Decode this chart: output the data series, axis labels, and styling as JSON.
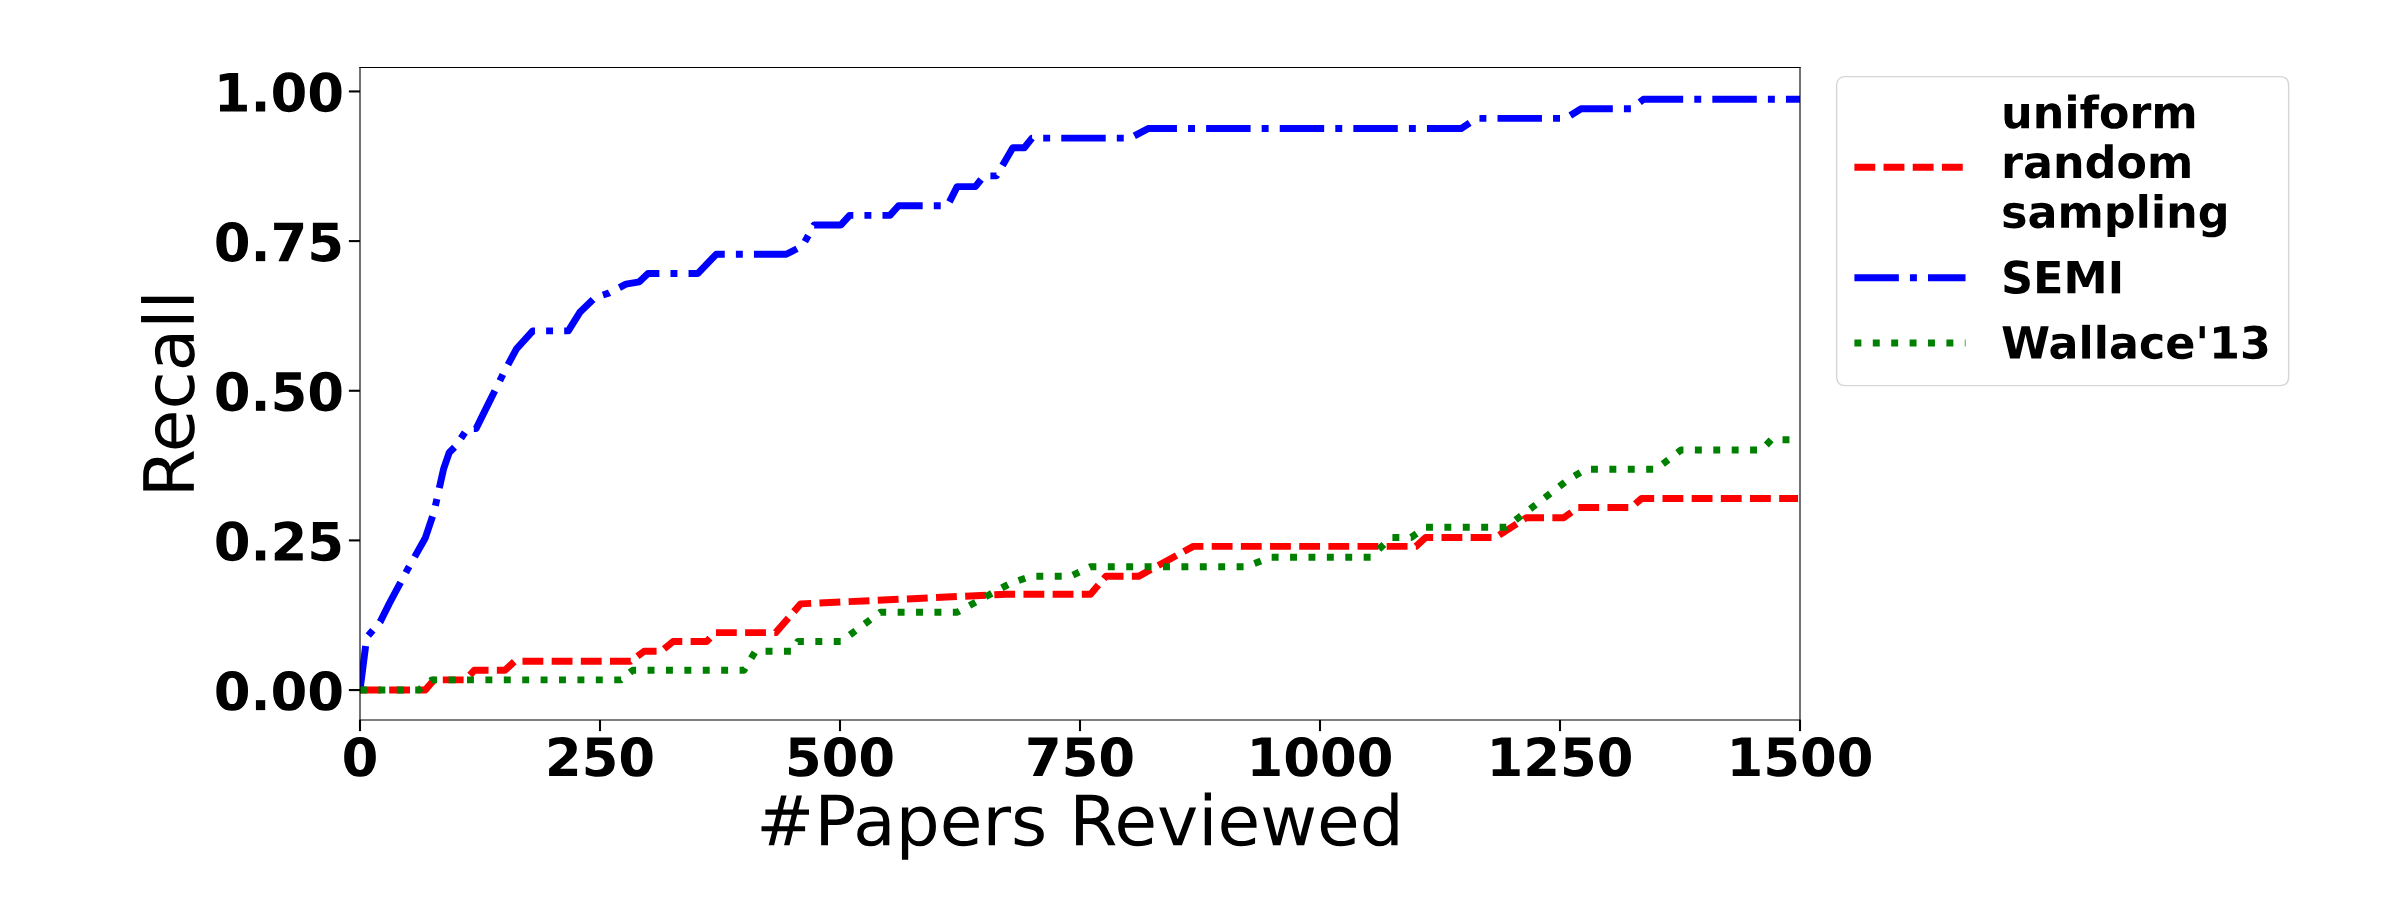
{
  "chart_data": {
    "type": "line",
    "xlabel": "#Papers Reviewed",
    "ylabel": "Recall",
    "xlim": [
      0,
      1500
    ],
    "xticks": [
      0,
      250,
      500,
      750,
      1000,
      1250,
      1500
    ],
    "ylim": [
      -0.05,
      1.04
    ],
    "yticks": [
      {
        "value": 0,
        "label": "0.00"
      },
      {
        "value": 0.25,
        "label": "0.25"
      },
      {
        "value": 0.5,
        "label": "0.50"
      },
      {
        "value": 0.75,
        "label": "0.75"
      },
      {
        "value": 1,
        "label": "1.00"
      }
    ],
    "grid": false,
    "legend": "top right",
    "series": [
      {
        "name": "uniform\nrandom\nsampling",
        "color": "#ff0000",
        "line_style": "dashed",
        "x": [
          0,
          68,
          77,
          110,
          119,
          151,
          161,
          282,
          296,
          314,
          326,
          361,
          370,
          433,
          459,
          673,
          761,
          777,
          811,
          868,
          1100,
          1110,
          1183,
          1215,
          1254,
          1269,
          1324,
          1335,
          1498
        ],
        "values": [
          0,
          0,
          0.017,
          0.017,
          0.033,
          0.033,
          0.048,
          0.048,
          0.065,
          0.065,
          0.081,
          0.081,
          0.096,
          0.096,
          0.144,
          0.16,
          0.16,
          0.19,
          0.19,
          0.24,
          0.24,
          0.255,
          0.255,
          0.288,
          0.288,
          0.305,
          0.305,
          0.32,
          0.32
        ]
      },
      {
        "name": "SEMI",
        "color": "#0000ff",
        "line_style": "dashdot",
        "x": [
          0,
          7,
          21,
          31,
          49,
          68,
          77,
          87,
          93,
          100,
          112,
          121,
          133,
          151,
          163,
          180,
          217,
          229,
          245,
          259,
          277,
          291,
          300,
          352,
          371,
          444,
          461,
          473,
          501,
          510,
          552,
          561,
          612,
          622,
          641,
          650,
          663,
          680,
          692,
          700,
          802,
          821,
          1147,
          1163,
          1256,
          1272,
          1324,
          1337,
          1500
        ],
        "values": [
          0,
          0.088,
          0.114,
          0.146,
          0.2,
          0.254,
          0.297,
          0.369,
          0.397,
          0.408,
          0.437,
          0.437,
          0.476,
          0.534,
          0.57,
          0.6,
          0.6,
          0.631,
          0.656,
          0.663,
          0.678,
          0.682,
          0.696,
          0.696,
          0.728,
          0.728,
          0.742,
          0.777,
          0.777,
          0.793,
          0.793,
          0.809,
          0.809,
          0.841,
          0.841,
          0.859,
          0.859,
          0.906,
          0.906,
          0.922,
          0.922,
          0.938,
          0.938,
          0.955,
          0.955,
          0.971,
          0.971,
          0.987,
          0.987
        ]
      },
      {
        "name": "Wallace'13",
        "color": "#008000",
        "line_style": "dotted",
        "x": [
          0,
          61,
          75,
          272,
          284,
          400,
          412,
          450,
          456,
          501,
          542,
          622,
          677,
          699,
          740,
          761,
          923,
          949,
          1053,
          1074,
          1095,
          1110,
          1194,
          1259,
          1277,
          1350,
          1376,
          1460,
          1470,
          1493
        ],
        "values": [
          0,
          0,
          0.017,
          0.017,
          0.033,
          0.033,
          0.065,
          0.065,
          0.081,
          0.081,
          0.13,
          0.13,
          0.178,
          0.19,
          0.19,
          0.206,
          0.206,
          0.222,
          0.222,
          0.255,
          0.255,
          0.272,
          0.272,
          0.352,
          0.369,
          0.369,
          0.401,
          0.401,
          0.418,
          0.418
        ]
      }
    ]
  }
}
